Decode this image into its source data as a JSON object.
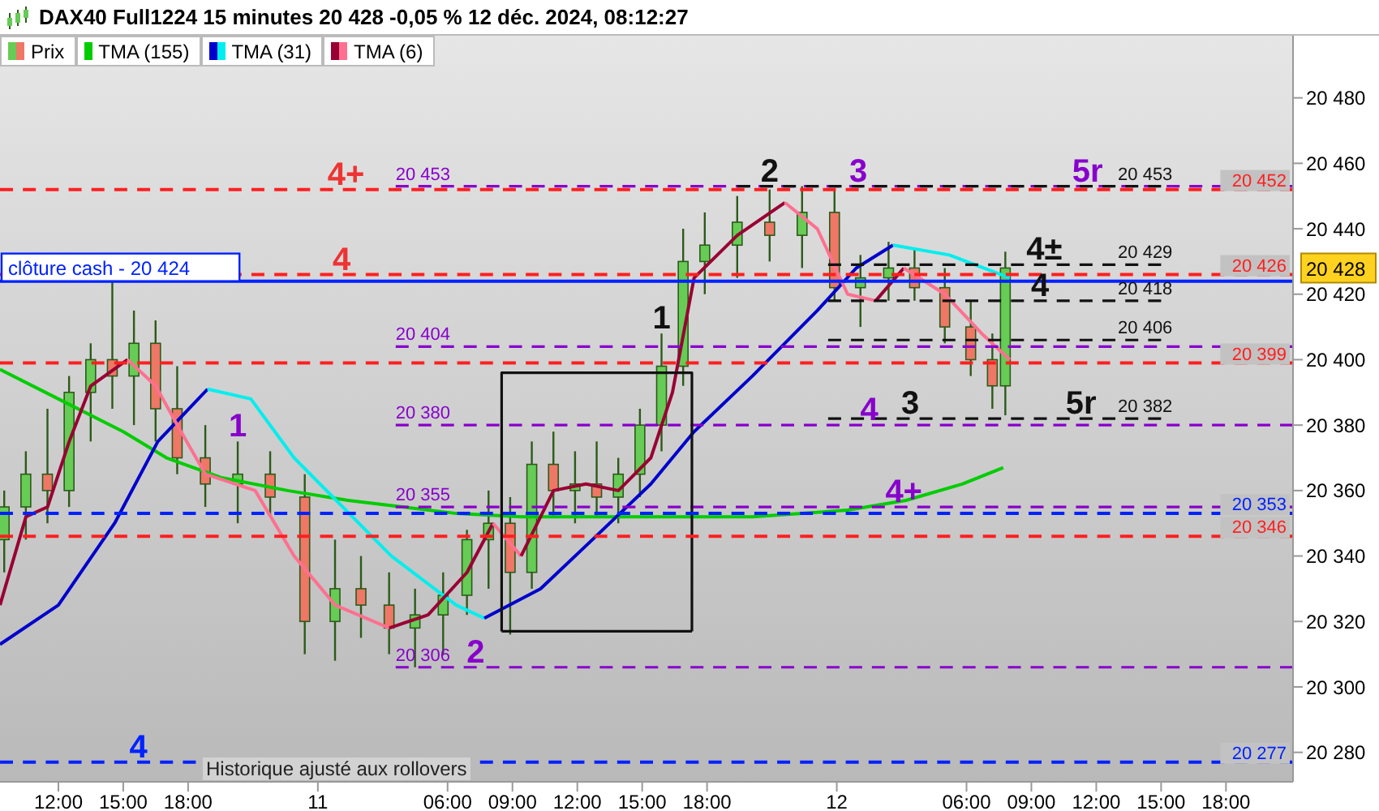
{
  "chart_data": {
    "type": "candlestick",
    "title": "DAX40 Full1224 15 minutes 20 428 -0,05 % 12 déc. 2024, 08:12:27",
    "series": [
      {
        "name": "Prix",
        "type": "candlestick",
        "colors": [
          "#66cc55",
          "#66cc55",
          "#ee7766",
          "#66cc55",
          "#66cc55",
          "#ee7766",
          "#66cc55",
          "#ee7766",
          "#ee7766",
          "#ee7766",
          "#66cc55",
          "#ee7766",
          "#ee7766",
          "#66cc55",
          "#ee7766",
          "#ee7766",
          "#66cc55",
          "#66cc55",
          "#66cc55",
          "#66cc55",
          "#ee7766",
          "#66cc55",
          "#ee7766",
          "#66cc55",
          "#ee7766",
          "#66cc55",
          "#66cc55",
          "#66cc55",
          "#66cc55",
          "#66cc55",
          "#66cc55",
          "#ee7766",
          "#66cc55",
          "#ee7766",
          "#66cc55",
          "#66cc55",
          "#ee7766",
          "#ee7766",
          "#ee7766",
          "#ee7766",
          "#66cc55"
        ],
        "x": [
          "2024-12-10T09:30",
          "2024-12-10T10:30",
          "2024-12-10T11:30",
          "2024-12-10T12:30",
          "2024-12-10T13:30",
          "2024-12-10T14:30",
          "2024-12-10T15:30",
          "2024-12-10T16:30",
          "2024-12-10T17:30",
          "2024-12-10T18:48",
          "2024-12-10T20:18",
          "2024-12-10T21:48",
          "2024-12-10T23:24",
          "2024-12-11T00:48",
          "2024-12-11T02:00",
          "2024-12-11T03:18",
          "2024-12-11T04:30",
          "2024-12-11T05:48",
          "2024-12-11T06:54",
          "2024-12-11T07:54",
          "2024-12-11T08:54",
          "2024-12-11T09:54",
          "2024-12-11T10:54",
          "2024-12-11T11:54",
          "2024-12-11T12:54",
          "2024-12-11T13:54",
          "2024-12-11T14:54",
          "2024-12-11T15:54",
          "2024-12-11T16:54",
          "2024-12-11T17:54",
          "2024-12-11T19:24",
          "2024-12-11T20:54",
          "2024-12-11T22:24",
          "2024-12-11T23:54",
          "2024-12-12T01:06",
          "2024-12-12T02:24",
          "2024-12-12T03:36",
          "2024-12-12T05:00",
          "2024-12-12T06:12",
          "2024-12-12T07:12",
          "2024-12-12T07:48"
        ],
        "ohlc": [
          [
            20345,
            20360,
            20335,
            20355
          ],
          [
            20355,
            20372,
            20345,
            20365
          ],
          [
            20365,
            20385,
            20350,
            20360
          ],
          [
            20360,
            20395,
            20355,
            20390
          ],
          [
            20390,
            20405,
            20375,
            20400
          ],
          [
            20400,
            20424,
            20385,
            20395
          ],
          [
            20395,
            20415,
            20380,
            20405
          ],
          [
            20405,
            20412,
            20375,
            20385
          ],
          [
            20385,
            20398,
            20365,
            20370
          ],
          [
            20370,
            20380,
            20355,
            20362
          ],
          [
            20362,
            20375,
            20350,
            20365
          ],
          [
            20365,
            20372,
            20352,
            20358
          ],
          [
            20358,
            20365,
            20310,
            20320
          ],
          [
            20320,
            20345,
            20308,
            20330
          ],
          [
            20330,
            20340,
            20315,
            20325
          ],
          [
            20325,
            20335,
            20310,
            20318
          ],
          [
            20318,
            20330,
            20306,
            20322
          ],
          [
            20322,
            20335,
            20310,
            20328
          ],
          [
            20328,
            20348,
            20322,
            20345
          ],
          [
            20345,
            20360,
            20330,
            20350
          ],
          [
            20350,
            20358,
            20316,
            20335
          ],
          [
            20335,
            20375,
            20330,
            20368
          ],
          [
            20368,
            20378,
            20352,
            20360
          ],
          [
            20360,
            20372,
            20350,
            20362
          ],
          [
            20362,
            20375,
            20352,
            20358
          ],
          [
            20358,
            20370,
            20350,
            20365
          ],
          [
            20365,
            20385,
            20358,
            20380
          ],
          [
            20380,
            20408,
            20372,
            20398
          ],
          [
            20398,
            20440,
            20392,
            20430
          ],
          [
            20430,
            20445,
            20420,
            20435
          ],
          [
            20435,
            20450,
            20425,
            20442
          ],
          [
            20442,
            20452,
            20430,
            20438
          ],
          [
            20438,
            20453,
            20428,
            20445
          ],
          [
            20445,
            20452,
            20418,
            20422
          ],
          [
            20422,
            20432,
            20410,
            20425
          ],
          [
            20425,
            20436,
            20418,
            20428
          ],
          [
            20428,
            20434,
            20418,
            20422
          ],
          [
            20422,
            20428,
            20405,
            20410
          ],
          [
            20410,
            20418,
            20395,
            20400
          ],
          [
            20400,
            20408,
            20385,
            20392
          ],
          [
            20392,
            20433,
            20383,
            20428
          ]
        ]
      },
      {
        "name": "TMA (155)",
        "type": "line",
        "color": "#00cc00",
        "x": [
          "2024-12-10T09:18",
          "2024-12-10T12:00",
          "2024-12-10T15:00",
          "2024-12-10T17:00",
          "2024-12-10T19:30",
          "2024-12-10T22:36",
          "2024-12-11T01:24",
          "2024-12-11T03:54",
          "2024-12-11T06:24",
          "2024-12-11T09:24",
          "2024-12-11T20:06",
          "2024-12-12T00:30",
          "2024-12-12T03:12",
          "2024-12-12T05:48",
          "2024-12-12T07:42"
        ],
        "values": [
          20397,
          20388,
          20378,
          20370,
          20364,
          20360,
          20357,
          20355,
          20353,
          20352,
          20352,
          20354,
          20357,
          20362,
          20367
        ]
      },
      {
        "name": "TMA (31)",
        "type": "line",
        "color": "#0000cc",
        "x": [
          "2024-12-10T09:18",
          "2024-12-10T12:00",
          "2024-12-10T14:36",
          "2024-12-10T16:36",
          "2024-12-10T18:54"
        ],
        "values": [
          20313,
          20325,
          20350,
          20375,
          20391
        ]
      },
      {
        "type": "line",
        "color": "#00eeee",
        "x": [
          "2024-12-10T18:54",
          "2024-12-10T20:54",
          "2024-12-10T22:54",
          "2024-12-11T03:24",
          "2024-12-11T06:24",
          "2024-12-11T07:42"
        ],
        "values": [
          20391,
          20388,
          20370,
          20340,
          20325,
          20321
        ]
      },
      {
        "type": "line",
        "color": "#0000cc",
        "x": [
          "2024-12-11T07:42",
          "2024-12-11T10:18",
          "2024-12-11T12:42",
          "2024-12-11T15:24",
          "2024-12-11T17:24",
          "2024-12-11T20:06",
          "2024-12-11T23:06",
          "2024-12-12T00:54",
          "2024-12-12T02:36"
        ],
        "values": [
          20321,
          20330,
          20345,
          20362,
          20378,
          20395,
          20415,
          20428,
          20435
        ]
      },
      {
        "type": "line",
        "color": "#00eeee",
        "x": [
          "2024-12-12T02:36",
          "2024-12-12T05:12",
          "2024-12-12T08:00"
        ],
        "values": [
          20435,
          20432,
          20425
        ]
      },
      {
        "name": "TMA (6)",
        "type": "line",
        "color": "#990033",
        "x": [
          "2024-12-10T09:18",
          "2024-12-10T10:30",
          "2024-12-10T11:30",
          "2024-12-10T12:30",
          "2024-12-10T13:30",
          "2024-12-10T15:12"
        ],
        "values": [
          20325,
          20352,
          20355,
          20375,
          20392,
          20400
        ]
      },
      {
        "type": "line",
        "color": "#ff7090",
        "x": [
          "2024-12-10T15:12",
          "2024-12-10T16:30",
          "2024-12-10T17:30",
          "2024-12-10T18:48",
          "2024-12-10T21:06",
          "2024-12-10T22:54",
          "2024-12-11T00:48",
          "2024-12-11T03:18"
        ],
        "values": [
          20400,
          20392,
          20380,
          20365,
          20360,
          20340,
          20325,
          20318
        ]
      },
      {
        "type": "line",
        "color": "#990033",
        "x": [
          "2024-12-11T03:18",
          "2024-12-11T05:06",
          "2024-12-11T06:54",
          "2024-12-11T08:06"
        ],
        "values": [
          20318,
          20322,
          20335,
          20350
        ]
      },
      {
        "type": "line",
        "color": "#ff7090",
        "x": [
          "2024-12-11T08:06",
          "2024-12-11T09:24"
        ],
        "values": [
          20350,
          20340
        ]
      },
      {
        "type": "line",
        "color": "#990033",
        "x": [
          "2024-12-11T09:24",
          "2024-12-11T10:54",
          "2024-12-11T12:24",
          "2024-12-11T13:54",
          "2024-12-11T15:24",
          "2024-12-11T16:24",
          "2024-12-11T17:24",
          "2024-12-11T19:24",
          "2024-12-11T21:36"
        ],
        "values": [
          20340,
          20360,
          20362,
          20360,
          20370,
          20390,
          20425,
          20438,
          20448
        ]
      },
      {
        "type": "line",
        "color": "#ff7090",
        "x": [
          "2024-12-11T21:36",
          "2024-12-11T23:06",
          "2024-12-12T00:30",
          "2024-12-12T01:48"
        ],
        "values": [
          20448,
          20440,
          20420,
          20418
        ]
      },
      {
        "type": "line",
        "color": "#990033",
        "x": [
          "2024-12-12T01:48",
          "2024-12-12T03:06"
        ],
        "values": [
          20418,
          20428
        ]
      },
      {
        "type": "line",
        "color": "#ff7090",
        "x": [
          "2024-12-12T03:06",
          "2024-12-12T05:00",
          "2024-12-12T06:42",
          "2024-12-12T08:00"
        ],
        "values": [
          20428,
          20420,
          20408,
          20400
        ]
      },
      {
        "type": "line",
        "color": "#8800cc",
        "line_style": "dashed",
        "x": [
          "2024-12-11T03:36",
          "2024-12-12T21:06"
        ],
        "values": [
          20453,
          20453
        ]
      },
      {
        "type": "line",
        "color": "#8800cc",
        "line_style": "dashed",
        "x": [
          "2024-12-11T03:36",
          "2024-12-12T21:06"
        ],
        "values": [
          20404,
          20404
        ]
      },
      {
        "type": "line",
        "color": "#8800cc",
        "line_style": "dashed",
        "x": [
          "2024-12-11T03:36",
          "2024-12-12T21:06"
        ],
        "values": [
          20380,
          20380
        ]
      },
      {
        "type": "line",
        "color": "#8800cc",
        "line_style": "dashed",
        "x": [
          "2024-12-11T03:36",
          "2024-12-12T21:06"
        ],
        "values": [
          20355,
          20355
        ]
      },
      {
        "type": "line",
        "color": "#8800cc",
        "line_style": "dashed",
        "x": [
          "2024-12-11T03:36",
          "2024-12-12T21:06"
        ],
        "values": [
          20306,
          20306
        ]
      },
      {
        "type": "line",
        "color": "#111111",
        "line_style": "dashed",
        "x": [
          "2024-12-11T19:24",
          "2024-12-12T15:00"
        ],
        "values": [
          20453,
          20453
        ]
      },
      {
        "type": "line",
        "color": "#111111",
        "line_style": "dashed",
        "x": [
          "2024-12-11T23:36",
          "2024-12-12T15:00"
        ],
        "values": [
          20429,
          20429
        ]
      },
      {
        "type": "line",
        "color": "#111111",
        "line_style": "dashed",
        "x": [
          "2024-12-11T23:36",
          "2024-12-12T15:00"
        ],
        "values": [
          20418,
          20418
        ]
      },
      {
        "type": "line",
        "color": "#111111",
        "line_style": "dashed",
        "x": [
          "2024-12-11T23:36",
          "2024-12-12T15:00"
        ],
        "values": [
          20406,
          20406
        ]
      },
      {
        "type": "line",
        "color": "#111111",
        "line_style": "dashed",
        "x": [
          "2024-12-11T23:36",
          "2024-12-12T15:00"
        ],
        "values": [
          20382,
          20382
        ]
      },
      {
        "type": "line",
        "color": "#111111",
        "line_style": "solid",
        "x": [
          "2024-12-11T08:30",
          "2024-12-11T08:30",
          "2024-12-11T17:18",
          "2024-12-11T17:18"
        ],
        "values": [
          20317,
          20396,
          20396,
          20317
        ]
      },
      {
        "type": "line",
        "color": "#111111",
        "line_style": "solid",
        "x": [
          "2024-12-11T08:30",
          "2024-12-11T17:18"
        ],
        "values": [
          20317,
          20317
        ]
      }
    ],
    "ref_lines": [
      {
        "axis": "y",
        "value": 20452,
        "label": "20 452",
        "color": "#ff2020",
        "line_style": "dashed"
      },
      {
        "axis": "y",
        "value": 20426,
        "label": "20 426",
        "color": "#ff2020",
        "line_style": "dashed"
      },
      {
        "axis": "y",
        "value": 20399,
        "label": "20 399",
        "color": "#ff2020",
        "line_style": "dashed"
      },
      {
        "axis": "y",
        "value": 20346,
        "label": "20 346",
        "color": "#ff2020",
        "line_style": "dashed"
      },
      {
        "axis": "y",
        "value": 20424,
        "label": "clôture cash -  20 424",
        "color": "#0022ff",
        "line_style": "solid"
      },
      {
        "axis": "y",
        "value": 20353,
        "label": "20 353",
        "color": "#0022ff",
        "line_style": "dashed"
      },
      {
        "axis": "y",
        "value": 20277,
        "label": "20 277",
        "color": "#0022ff",
        "line_style": "dashed"
      }
    ],
    "annotations": [
      {
        "text": "4+",
        "x": "2024-12-11T01:18",
        "y": 20452
      },
      {
        "text": "4",
        "x": "2024-12-11T01:06",
        "y": 20426
      },
      {
        "text": "1",
        "x": "2024-12-10T20:18",
        "y": 20375
      },
      {
        "text": "2",
        "x": "2024-12-11T07:18",
        "y": 20306
      },
      {
        "text": "1",
        "x": "2024-12-11T15:54",
        "y": 20408
      },
      {
        "text": "2",
        "x": "2024-12-11T20:54",
        "y": 20453
      },
      {
        "text": "3",
        "x": "2024-12-12T01:00",
        "y": 20453
      },
      {
        "text": "5r",
        "x": "2024-12-12T11:36",
        "y": 20453
      },
      {
        "text": "4±",
        "x": "2024-12-12T09:36",
        "y": 20429
      },
      {
        "text": "4",
        "x": "2024-12-12T09:24",
        "y": 20418
      },
      {
        "text": "3",
        "x": "2024-12-12T03:24",
        "y": 20382
      },
      {
        "text": "5r",
        "x": "2024-12-12T11:18",
        "y": 20382
      },
      {
        "text": "4",
        "x": "2024-12-12T01:30",
        "y": 20380
      },
      {
        "text": "4+",
        "x": "2024-12-12T03:06",
        "y": 20355
      },
      {
        "text": "4",
        "x": "2024-12-10T15:42",
        "y": 20277
      },
      {
        "text": "20 453",
        "x": "2024-12-11T03:36",
        "y": 20453
      },
      {
        "text": "20 404",
        "x": "2024-12-11T03:36",
        "y": 20404
      },
      {
        "text": "20 380",
        "x": "2024-12-11T03:36",
        "y": 20380
      },
      {
        "text": "20 355",
        "x": "2024-12-11T03:36",
        "y": 20355
      },
      {
        "text": "20 306",
        "x": "2024-12-11T03:36",
        "y": 20306
      },
      {
        "text": "20 453",
        "x": "2024-12-12T13:00",
        "y": 20453
      },
      {
        "text": "20 429",
        "x": "2024-12-12T13:00",
        "y": 20429
      },
      {
        "text": "20 418",
        "x": "2024-12-12T13:00",
        "y": 20418
      },
      {
        "text": "20 406",
        "x": "2024-12-12T13:00",
        "y": 20406
      },
      {
        "text": "20 382",
        "x": "2024-12-12T13:00",
        "y": 20382
      },
      {
        "text": "20 428",
        "x": "2024-12-12T21:06",
        "y": 20428
      },
      "Historique ajusté aux rollovers"
    ],
    "xlim": [
      "2024-12-10T09:18",
      "2024-12-12T21:06"
    ],
    "xticks": [
      {
        "value": "2024-12-10T12:00",
        "label": "12:00"
      },
      {
        "value": "2024-12-10T15:00",
        "label": "15:00"
      },
      {
        "value": "2024-12-10T18:00",
        "label": "18:00"
      },
      {
        "value": "2024-12-11T00:00",
        "label": "11"
      },
      {
        "value": "2024-12-11T06:00",
        "label": "06:00"
      },
      {
        "value": "2024-12-11T09:00",
        "label": "09:00"
      },
      {
        "value": "2024-12-11T12:00",
        "label": "12:00"
      },
      {
        "value": "2024-12-11T15:00",
        "label": "15:00"
      },
      {
        "value": "2024-12-11T18:00",
        "label": "18:00"
      },
      {
        "value": "2024-12-12T00:00",
        "label": "12"
      },
      {
        "value": "2024-12-12T06:00",
        "label": "06:00"
      },
      {
        "value": "2024-12-12T09:00",
        "label": "09:00"
      },
      {
        "value": "2024-12-12T12:00",
        "label": "12:00"
      },
      {
        "value": "2024-12-12T15:00",
        "label": "15:00"
      },
      {
        "value": "2024-12-12T18:00",
        "label": "18:00"
      }
    ],
    "ylim": [
      20271,
      20499
    ],
    "yticks": [
      {
        "value": 20280,
        "label": "20 280"
      },
      {
        "value": 20300,
        "label": "20 300"
      },
      {
        "value": 20320,
        "label": "20 320"
      },
      {
        "value": 20340,
        "label": "20 340"
      },
      {
        "value": 20360,
        "label": "20 360"
      },
      {
        "value": 20380,
        "label": "20 380"
      },
      {
        "value": 20400,
        "label": "20 400"
      },
      {
        "value": 20420,
        "label": "20 420"
      },
      {
        "value": 20440,
        "label": "20 440"
      },
      {
        "value": 20460,
        "label": "20 460"
      },
      {
        "value": 20480,
        "label": "20 480"
      }
    ],
    "legend": "top left",
    "marker": "none"
  }
}
